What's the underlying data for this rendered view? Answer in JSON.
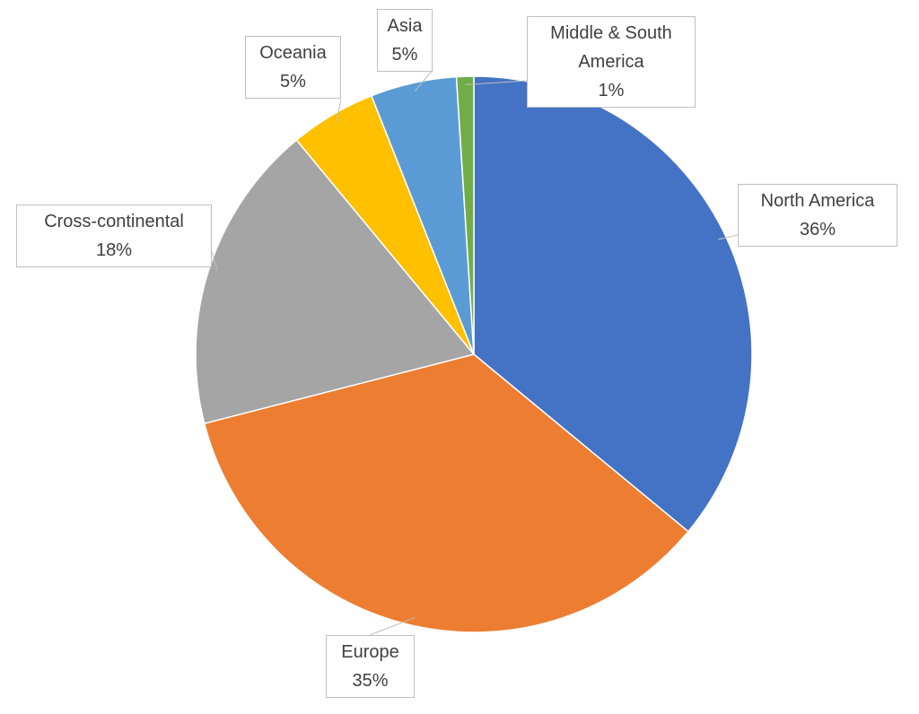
{
  "chart_data": {
    "type": "pie",
    "categories": [
      "North America",
      "Europe",
      "Cross-continental",
      "Oceania",
      "Asia",
      "Middle & South America"
    ],
    "values": [
      36,
      35,
      18,
      5,
      5,
      1
    ],
    "value_labels": [
      "36%",
      "35%",
      "18%",
      "5%",
      "5%",
      "1%"
    ],
    "colors": [
      "#4472c4",
      "#ed7d31",
      "#a5a5a5",
      "#ffc000",
      "#5b9bd5",
      "#70ad47"
    ]
  }
}
